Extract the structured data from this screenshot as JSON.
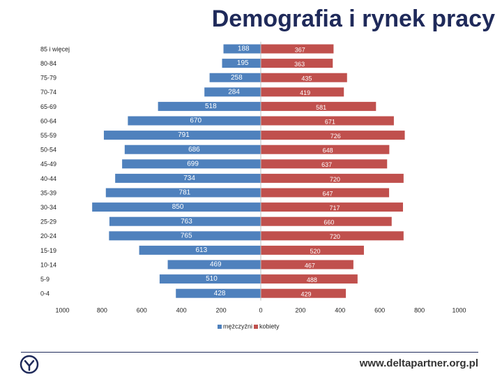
{
  "title": "Demografia i rynek pracy",
  "footer": {
    "url": "www.deltapartner.org.pl"
  },
  "colors": {
    "men": "#4f81bd",
    "women": "#c0504d",
    "title": "#1f2a5a",
    "axis": "#7f7f7f"
  },
  "chart_data": {
    "type": "bar",
    "orientation": "horizontal",
    "title": "",
    "categories": [
      "85 i więcej",
      "80-84",
      "75-79",
      "70-74",
      "65-69",
      "60-64",
      "55-59",
      "50-54",
      "45-49",
      "40-44",
      "35-39",
      "30-34",
      "25-29",
      "20-24",
      "15-19",
      "10-14",
      "5-9",
      "0-4"
    ],
    "series": [
      {
        "name": "mężczyźni",
        "values": [
          188,
          195,
          258,
          284,
          518,
          670,
          791,
          686,
          699,
          734,
          781,
          850,
          763,
          765,
          613,
          469,
          510,
          428
        ]
      },
      {
        "name": "kobiety",
        "values": [
          367,
          363,
          435,
          419,
          581,
          671,
          726,
          648,
          637,
          720,
          647,
          717,
          660,
          720,
          520,
          467,
          488,
          429
        ]
      }
    ],
    "xlim": [
      -1000,
      1000
    ],
    "x_ticks": [
      1000,
      800,
      600,
      400,
      200,
      0,
      200,
      400,
      600,
      800,
      1000
    ],
    "legend_position": "bottom-center"
  }
}
